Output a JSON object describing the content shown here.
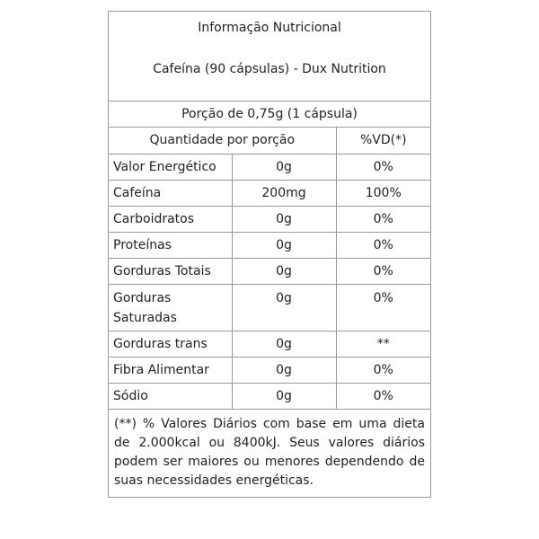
{
  "title": "Informação Nutricional",
  "subtitle": "Cafeína (90 cápsulas) - Dux Nutrition",
  "portion": "Porção de 0,75g (1 cápsula)",
  "header": {
    "quantity": "Quantidade por porção",
    "vd": "%VD(*)"
  },
  "rows": [
    {
      "name": "Valor Energético",
      "amount": "0g",
      "vd": "0%"
    },
    {
      "name": "Cafeína",
      "amount": "200mg",
      "vd": "100%"
    },
    {
      "name": "Carboidratos",
      "amount": "0g",
      "vd": "0%"
    },
    {
      "name": "Proteínas",
      "amount": "0g",
      "vd": "0%"
    },
    {
      "name": "Gorduras Totais",
      "amount": "0g",
      "vd": "0%"
    },
    {
      "name": "Gorduras Saturadas",
      "amount": "0g",
      "vd": "0%"
    },
    {
      "name": "Gorduras trans",
      "amount": "0g",
      "vd": "**"
    },
    {
      "name": "Fibra Alimentar",
      "amount": "0g",
      "vd": "0%"
    },
    {
      "name": "Sódio",
      "amount": "0g",
      "vd": "0%"
    }
  ],
  "footnote": "(**) % Valores Diários com base em uma dieta de 2.000kcal ou 8400kJ. Seus valores diários podem ser maiores ou menores dependendo de suas necessidades energéticas."
}
